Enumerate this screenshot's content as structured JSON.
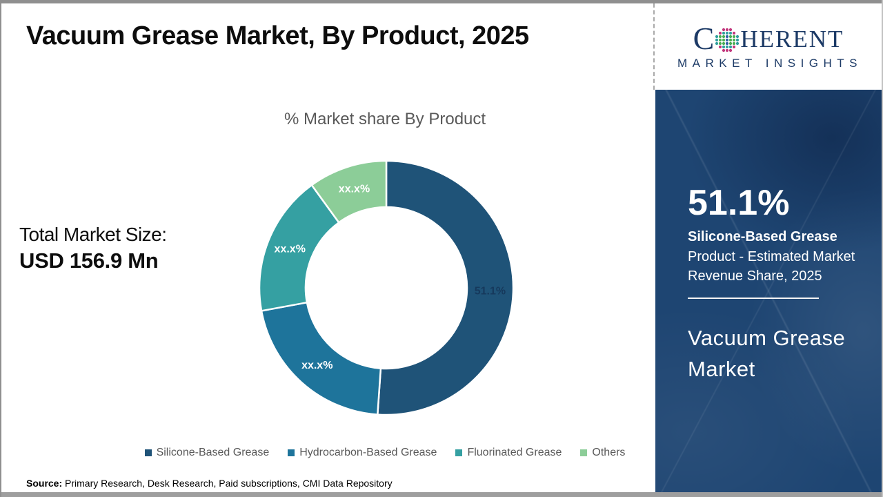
{
  "page": {
    "title": "Vacuum Grease Market, By Product, 2025",
    "source_label": "Source:",
    "source_text": "Primary Research, Desk Research, Paid subscriptions, CMI Data Repository"
  },
  "total_market": {
    "label": "Total Market Size:",
    "value": "USD 156.9 Mn"
  },
  "chart_data": {
    "type": "donut",
    "title": "% Market share By Product",
    "legend_position": "bottom",
    "start_angle_deg": 0,
    "segments": [
      {
        "label": "Silicone-Based Grease",
        "display_value": "51.1%",
        "share_pct_est": 51.1,
        "color": "#1F5378",
        "label_color": "#16395C"
      },
      {
        "label": "Hydrocarbon-Based Grease",
        "display_value": "xx.x%",
        "share_pct_est": 21.0,
        "color": "#1E749B",
        "label_color": "#FFFFFF"
      },
      {
        "label": "Fluorinated Grease",
        "display_value": "xx.x%",
        "share_pct_est": 17.9,
        "color": "#35A0A2",
        "label_color": "#FFFFFF"
      },
      {
        "label": "Others",
        "display_value": "xx.x%",
        "share_pct_est": 10.0,
        "color": "#8CCD98",
        "label_color": "#FFFFFF"
      }
    ]
  },
  "sidebar": {
    "background_color": "#1E4572",
    "headline_value": "51.1%",
    "subtitle_bold": "Silicone-Based Grease",
    "subtitle_rest": "Product - Estimated Market Revenue Share, 2025",
    "panel_title": "Vacuum Grease Market"
  },
  "logo": {
    "brand_part1": "C",
    "brand_part2": "HERENT",
    "brand_sub": "MARKET INSIGHTS",
    "brand_color": "#1C3A66",
    "globe_colors": {
      "outer": "#C2347B",
      "mid": "#2E9E9E",
      "inner": "#4AAE54",
      "center": "#2F5FA5"
    }
  }
}
